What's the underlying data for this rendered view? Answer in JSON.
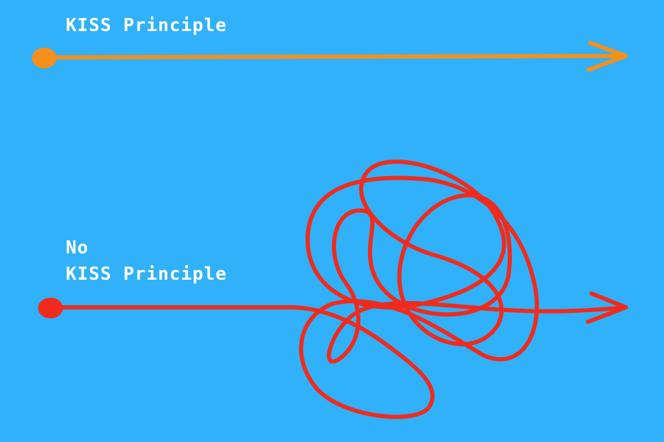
{
  "simple_path": {
    "label": "KISS Principle",
    "color": "#f5901c"
  },
  "complex_path": {
    "label_line1": "No",
    "label_line2": "KISS Principle",
    "color": "#f02b1d"
  },
  "background_color": "#30b1f9",
  "text_color": "#ffffff"
}
